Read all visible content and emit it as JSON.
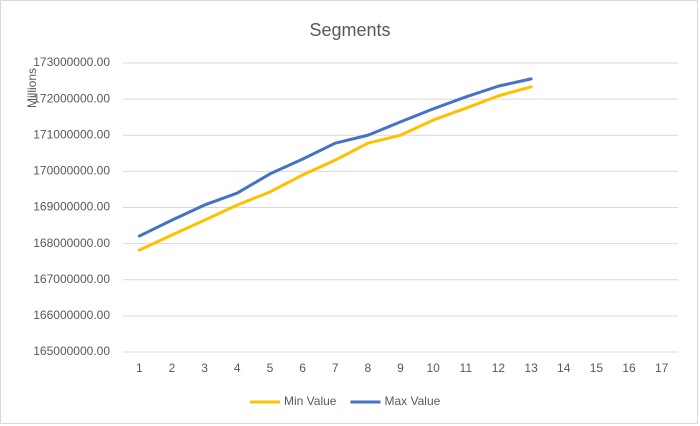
{
  "chart_data": {
    "type": "line",
    "title": "Segments",
    "y_label": "Millions",
    "categories": [
      "1",
      "2",
      "3",
      "4",
      "5",
      "6",
      "7",
      "8",
      "9",
      "10",
      "11",
      "12",
      "13",
      "14",
      "15",
      "16",
      "17"
    ],
    "series": [
      {
        "name": "Min Value",
        "color": "#ffc000",
        "values": [
          167820000,
          168240000,
          168650000,
          169070000,
          169430000,
          169900000,
          170310000,
          170780000,
          171000000,
          171420000,
          171750000,
          172090000,
          172340000,
          null,
          null,
          null,
          null
        ]
      },
      {
        "name": "Max Value",
        "color": "#4472c4",
        "values": [
          168210000,
          168650000,
          169070000,
          169400000,
          169930000,
          170340000,
          170780000,
          171000000,
          171370000,
          171730000,
          172060000,
          172360000,
          172560000,
          null,
          null,
          null,
          null
        ]
      }
    ],
    "ylim": [
      165000000,
      173000000
    ],
    "yticks": [
      {
        "value": 165000000,
        "label": "165000000.00"
      },
      {
        "value": 166000000,
        "label": "166000000.00"
      },
      {
        "value": 167000000,
        "label": "167000000.00"
      },
      {
        "value": 168000000,
        "label": "168000000.00"
      },
      {
        "value": 169000000,
        "label": "169000000.00"
      },
      {
        "value": 170000000,
        "label": "170000000.00"
      },
      {
        "value": 171000000,
        "label": "171000000.00"
      },
      {
        "value": 172000000,
        "label": "172000000.00"
      },
      {
        "value": 173000000,
        "label": "173000000.00"
      }
    ],
    "grid": true,
    "legend": "bottom"
  }
}
